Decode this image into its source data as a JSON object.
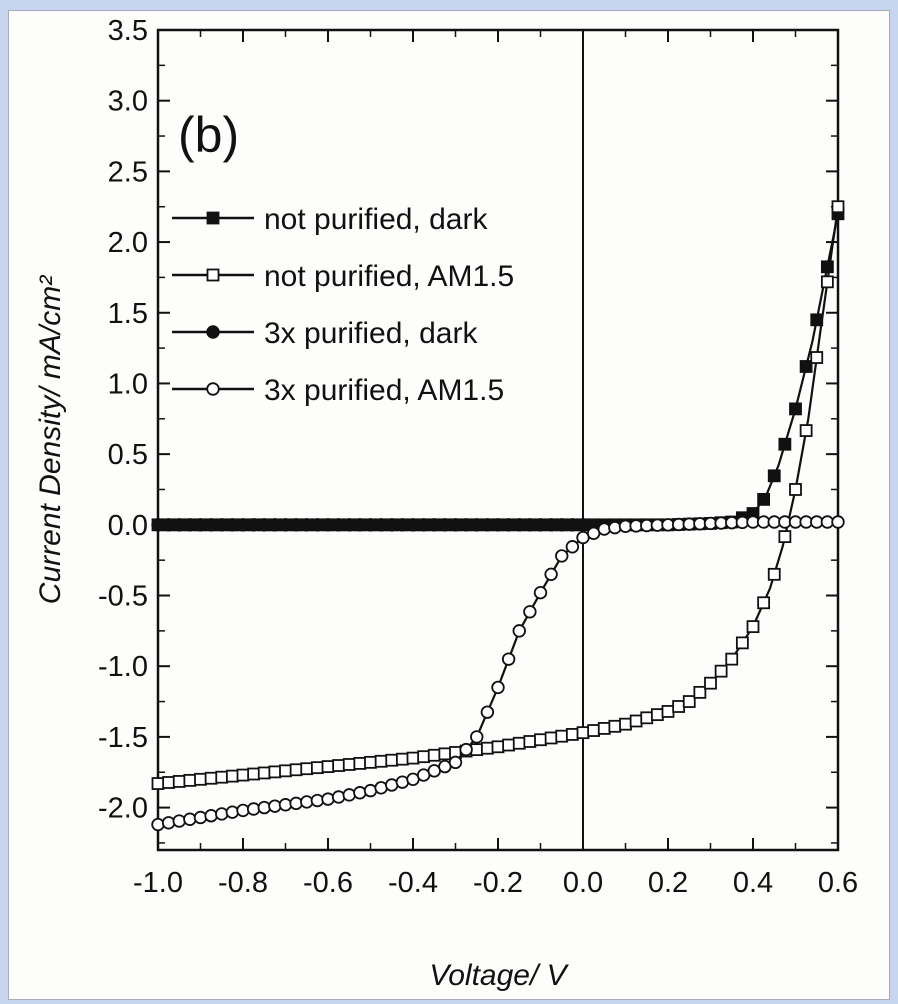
{
  "chart_data": {
    "type": "line",
    "panel_label": "(b)",
    "title": "",
    "xlabel": "Voltage/ V",
    "ylabel": "Current Density/ mA/cm²",
    "xlim": [
      -1.0,
      0.6
    ],
    "ylim": [
      -2.3,
      3.5
    ],
    "xticks": [
      "-1.0",
      "-0.8",
      "-0.6",
      "-0.4",
      "-0.2",
      "0.0",
      "0.2",
      "0.4",
      "0.6"
    ],
    "yticks": [
      "3.5",
      "3.0",
      "2.5",
      "2.0",
      "1.5",
      "1.0",
      "0.5",
      "0.0",
      "-0.5",
      "-1.0",
      "-1.5",
      "-2.0"
    ],
    "legend_position": "upper-left",
    "grid": false,
    "series": [
      {
        "name": "not purified, dark",
        "marker": "square-filled",
        "points": [
          [
            -1.0,
            0.0
          ],
          [
            -0.9,
            0.0
          ],
          [
            -0.8,
            0.0
          ],
          [
            -0.7,
            0.0
          ],
          [
            -0.6,
            0.0
          ],
          [
            -0.5,
            0.0
          ],
          [
            -0.4,
            0.0
          ],
          [
            -0.3,
            0.0
          ],
          [
            -0.2,
            0.0
          ],
          [
            -0.1,
            0.0
          ],
          [
            0.0,
            0.0
          ],
          [
            0.1,
            0.0
          ],
          [
            0.2,
            0.0
          ],
          [
            0.3,
            0.01
          ],
          [
            0.35,
            0.02
          ],
          [
            0.4,
            0.08
          ],
          [
            0.43,
            0.2
          ],
          [
            0.46,
            0.42
          ],
          [
            0.5,
            0.82
          ],
          [
            0.54,
            1.3
          ],
          [
            0.57,
            1.75
          ],
          [
            0.6,
            2.2
          ]
        ]
      },
      {
        "name": "not purified, AM1.5",
        "marker": "square-open",
        "points": [
          [
            -1.0,
            -1.83
          ],
          [
            -0.9,
            -1.8
          ],
          [
            -0.8,
            -1.77
          ],
          [
            -0.7,
            -1.74
          ],
          [
            -0.6,
            -1.71
          ],
          [
            -0.5,
            -1.68
          ],
          [
            -0.4,
            -1.65
          ],
          [
            -0.3,
            -1.61
          ],
          [
            -0.2,
            -1.57
          ],
          [
            -0.1,
            -1.52
          ],
          [
            0.0,
            -1.47
          ],
          [
            0.1,
            -1.41
          ],
          [
            0.2,
            -1.32
          ],
          [
            0.25,
            -1.25
          ],
          [
            0.3,
            -1.12
          ],
          [
            0.35,
            -0.95
          ],
          [
            0.4,
            -0.72
          ],
          [
            0.44,
            -0.45
          ],
          [
            0.47,
            -0.15
          ],
          [
            0.5,
            0.25
          ],
          [
            0.53,
            0.75
          ],
          [
            0.56,
            1.4
          ],
          [
            0.6,
            2.25
          ]
        ]
      },
      {
        "name": "3x purified, dark",
        "marker": "circle-filled",
        "points": [
          [
            -1.0,
            0.0
          ],
          [
            -0.9,
            0.0
          ],
          [
            -0.8,
            0.0
          ],
          [
            -0.7,
            0.0
          ],
          [
            -0.6,
            0.0
          ],
          [
            -0.5,
            0.0
          ],
          [
            -0.4,
            0.0
          ],
          [
            -0.3,
            0.0
          ],
          [
            -0.2,
            0.0
          ],
          [
            -0.1,
            0.0
          ],
          [
            0.0,
            0.0
          ]
        ]
      },
      {
        "name": "3x purified, AM1.5",
        "marker": "circle-open",
        "points": [
          [
            -1.0,
            -2.12
          ],
          [
            -0.9,
            -2.07
          ],
          [
            -0.8,
            -2.02
          ],
          [
            -0.7,
            -1.98
          ],
          [
            -0.6,
            -1.94
          ],
          [
            -0.5,
            -1.88
          ],
          [
            -0.4,
            -1.8
          ],
          [
            -0.3,
            -1.68
          ],
          [
            -0.25,
            -1.5
          ],
          [
            -0.2,
            -1.15
          ],
          [
            -0.15,
            -0.75
          ],
          [
            -0.1,
            -0.48
          ],
          [
            -0.05,
            -0.22
          ],
          [
            0.0,
            -0.09
          ],
          [
            0.05,
            -0.03
          ],
          [
            0.1,
            -0.01
          ],
          [
            0.2,
            0.0
          ],
          [
            0.3,
            0.01
          ],
          [
            0.4,
            0.02
          ],
          [
            0.5,
            0.02
          ],
          [
            0.6,
            0.02
          ]
        ]
      }
    ]
  }
}
